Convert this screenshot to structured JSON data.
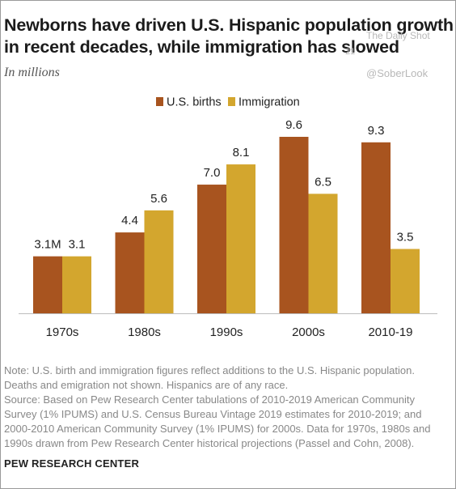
{
  "header": {
    "title_lines": [
      "Newborns have driven U.S. Hispanic population growth",
      "in recent decades, while immigration has slowed"
    ],
    "subtitle": "In millions"
  },
  "watermark": {
    "line1": "The Daily Shot",
    "line2": "21",
    "handle": "@SoberLook"
  },
  "chart_data": {
    "type": "bar",
    "categories": [
      "1970s",
      "1980s",
      "1990s",
      "2000s",
      "2010-19"
    ],
    "series": [
      {
        "name": "U.S. births",
        "color": "#a8541f",
        "values": [
          3.1,
          4.4,
          7.0,
          9.6,
          9.3
        ],
        "labels": [
          "3.1M",
          "4.4",
          "7.0",
          "9.6",
          "9.3"
        ]
      },
      {
        "name": "Immigration",
        "color": "#d3a62e",
        "values": [
          3.1,
          5.6,
          8.1,
          6.5,
          3.5
        ],
        "labels": [
          "3.1",
          "5.6",
          "8.1",
          "6.5",
          "3.5"
        ]
      }
    ],
    "ylim": [
      0,
      9.6
    ],
    "legend_position": "top-center",
    "grid": false
  },
  "footer": {
    "note_lines": [
      "Note: U.S. birth and immigration figures reflect additions to the U.S. Hispanic population.",
      "Deaths and emigration not shown. Hispanics are of any race.",
      "Source: Based on Pew Research Center tabulations of 2010-2019 American Community",
      "Survey (1% IPUMS) and U.S. Census Bureau Vintage 2019 estimates for 2010-2019; and",
      "2000-2010 American Community Survey (1% IPUMS) for 2000s. Data for 1970s, 1980s and",
      "1990s drawn from Pew Research Center historical projections (Passel and Cohn, 2008)."
    ],
    "brand": "PEW RESEARCH CENTER"
  }
}
